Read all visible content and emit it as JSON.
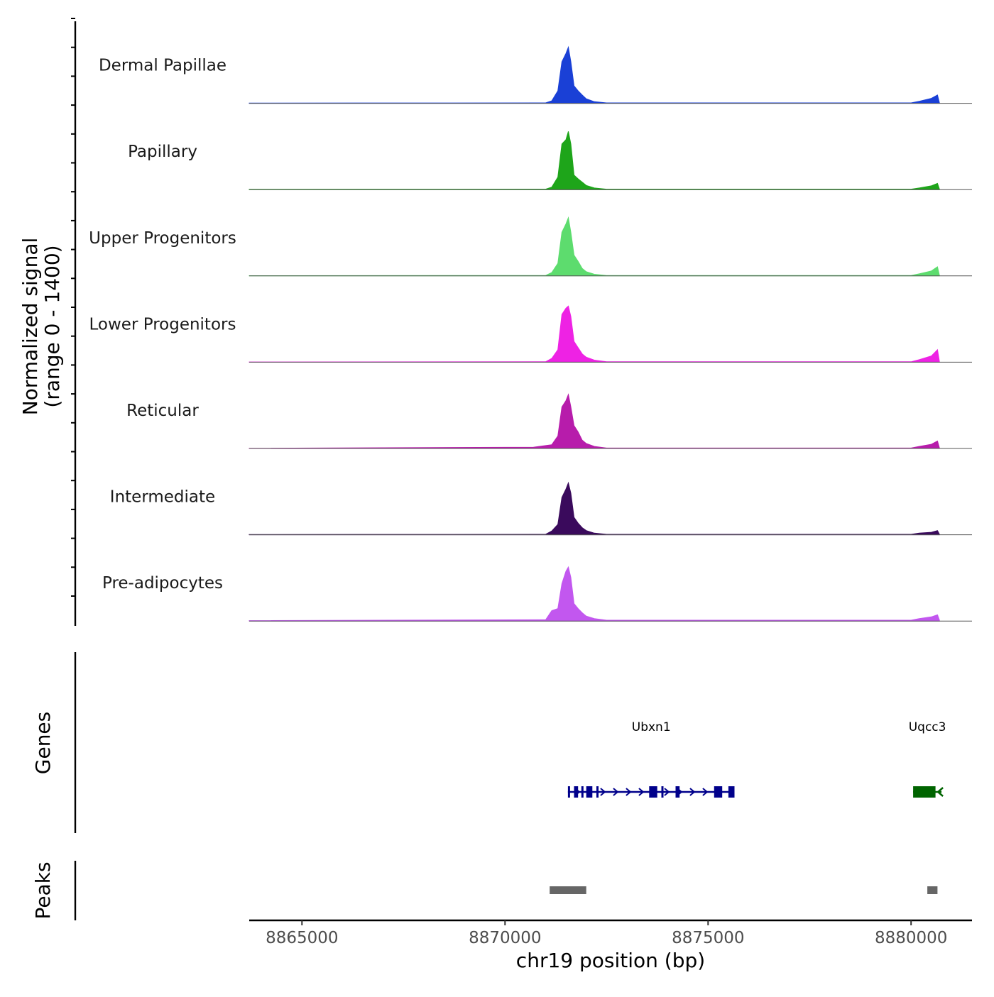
{
  "chart_data": {
    "type": "area",
    "title": "",
    "xlabel": "chr19 position (bp)",
    "ylabel": "Normalized signal",
    "ylabel_sub": "(range 0 - 1400)",
    "xlim": [
      8863700,
      8881500
    ],
    "ylim": [
      0,
      1400
    ],
    "x_ticks": [
      8865000,
      8870000,
      8875000,
      8880000
    ],
    "x_tick_labels": [
      "8865000",
      "8870000",
      "8875000",
      "8880000"
    ],
    "series": [
      {
        "name": "Dermal Papillae",
        "color": "#1a40d6",
        "x": [
          8863700,
          8871000,
          8871150,
          8871300,
          8871400,
          8871500,
          8871560,
          8871620,
          8871700,
          8871800,
          8871900,
          8872000,
          8872200,
          8872500,
          8880000,
          8880200,
          8880500,
          8880650,
          8880700
        ],
        "y": [
          5,
          10,
          60,
          300,
          1000,
          1200,
          1350,
          1000,
          420,
          300,
          200,
          110,
          40,
          10,
          10,
          50,
          120,
          200,
          10
        ]
      },
      {
        "name": "Papillary",
        "color": "#1ea51a",
        "x": [
          8863700,
          8871000,
          8871150,
          8871300,
          8871400,
          8871500,
          8871560,
          8871620,
          8871700,
          8871800,
          8871900,
          8872000,
          8872200,
          8872500,
          8880000,
          8880200,
          8880500,
          8880650,
          8880700
        ],
        "y": [
          5,
          10,
          60,
          300,
          1100,
          1200,
          1400,
          1100,
          350,
          260,
          180,
          100,
          40,
          10,
          10,
          40,
          90,
          150,
          10
        ]
      },
      {
        "name": "Upper Progenitors",
        "color": "#5ddc6e",
        "x": [
          8863700,
          8871000,
          8871150,
          8871300,
          8871400,
          8871500,
          8871560,
          8871620,
          8871700,
          8871800,
          8871900,
          8872000,
          8872200,
          8872500,
          8880000,
          8880200,
          8880500,
          8880650,
          8880700
        ],
        "y": [
          5,
          10,
          80,
          300,
          1050,
          1250,
          1400,
          1050,
          500,
          350,
          180,
          100,
          40,
          10,
          10,
          50,
          120,
          220,
          10
        ]
      },
      {
        "name": "Lower Progenitors",
        "color": "#ee22e4",
        "x": [
          8863700,
          8871000,
          8871150,
          8871300,
          8871400,
          8871500,
          8871560,
          8871620,
          8871700,
          8871800,
          8871900,
          8872000,
          8872200,
          8872500,
          8880000,
          8880200,
          8880500,
          8880650,
          8880700
        ],
        "y": [
          5,
          10,
          90,
          300,
          1150,
          1300,
          1350,
          1100,
          500,
          350,
          200,
          120,
          50,
          10,
          10,
          60,
          150,
          300,
          10
        ]
      },
      {
        "name": "Reticular",
        "color": "#b71cab",
        "x": [
          8863700,
          8870700,
          8871150,
          8871300,
          8871400,
          8871500,
          8871560,
          8871620,
          8871700,
          8871800,
          8871900,
          8872000,
          8872200,
          8872500,
          8880000,
          8880200,
          8880500,
          8880650,
          8880700
        ],
        "y": [
          5,
          30,
          90,
          300,
          1000,
          1150,
          1300,
          1000,
          550,
          400,
          200,
          120,
          50,
          10,
          10,
          50,
          100,
          180,
          10
        ]
      },
      {
        "name": "Intermediate",
        "color": "#3a0a5c",
        "x": [
          8863700,
          8871000,
          8871150,
          8871300,
          8871400,
          8871500,
          8871560,
          8871620,
          8871700,
          8871800,
          8871900,
          8872000,
          8872200,
          8872500,
          8880000,
          8880200,
          8880500,
          8880650,
          8880700
        ],
        "y": [
          5,
          10,
          90,
          250,
          900,
          1100,
          1250,
          1000,
          420,
          280,
          170,
          100,
          40,
          10,
          10,
          40,
          60,
          100,
          10
        ]
      },
      {
        "name": "Pre-adipocytes",
        "color": "#c257ef",
        "x": [
          8863700,
          8871000,
          8871150,
          8871300,
          8871400,
          8871500,
          8871560,
          8871620,
          8871700,
          8871800,
          8871900,
          8872000,
          8872200,
          8872500,
          8880000,
          8880200,
          8880500,
          8880650,
          8880700
        ],
        "y": [
          10,
          30,
          250,
          300,
          900,
          1200,
          1300,
          1050,
          420,
          300,
          200,
          120,
          60,
          20,
          20,
          60,
          100,
          150,
          20
        ]
      }
    ],
    "genes": {
      "label": "Genes",
      "items": [
        {
          "name": "Ubxn1",
          "start": 8871550,
          "end": 8875650,
          "strand": "+",
          "color": "#00008b",
          "exons": [
            [
              8871550,
              8871600
            ],
            [
              8871700,
              8871800
            ],
            [
              8871880,
              8871900
            ],
            [
              8872000,
              8872150
            ],
            [
              8872250,
              8872300
            ],
            [
              8873550,
              8873750
            ],
            [
              8873850,
              8873900
            ],
            [
              8874200,
              8874300
            ],
            [
              8875150,
              8875350
            ],
            [
              8875500,
              8875650
            ]
          ]
        },
        {
          "name": "Uqcc3",
          "start": 8880050,
          "end": 8880750,
          "strand": "-",
          "color": "#006400",
          "exons": [
            [
              8880050,
              8880600
            ]
          ]
        }
      ]
    },
    "peaks": {
      "label": "Peaks",
      "color": "#666666",
      "regions": [
        [
          8871100,
          8872000
        ],
        [
          8880400,
          8880650
        ]
      ]
    }
  }
}
